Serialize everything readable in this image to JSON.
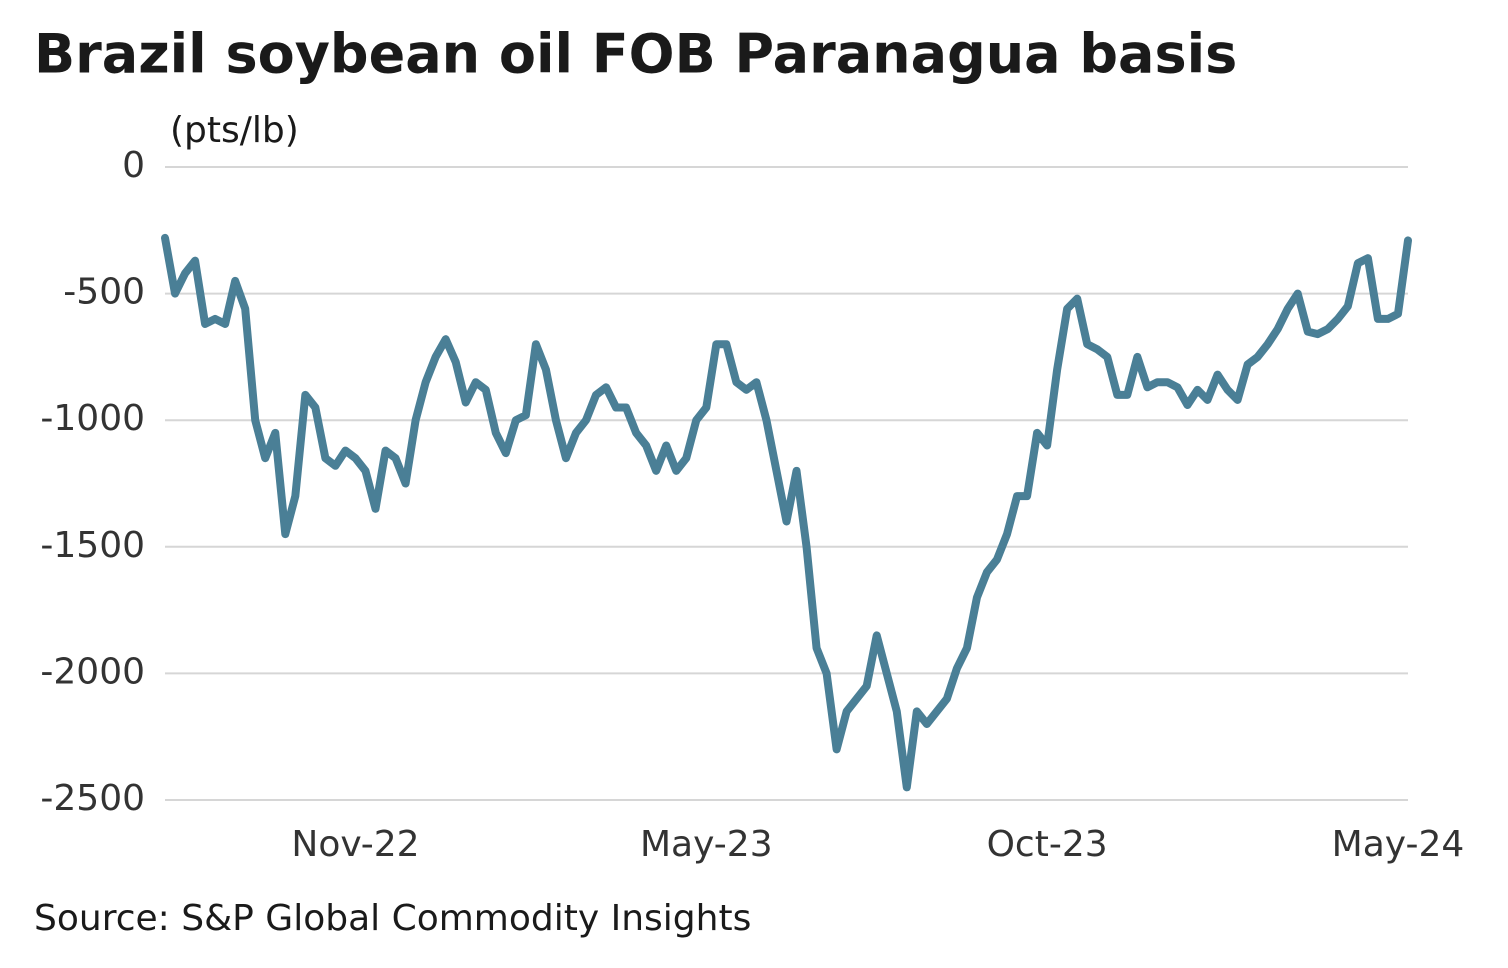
{
  "chart_data": {
    "type": "line",
    "title": "Brazil soybean oil FOB Paranagua basis",
    "y_label": "(pts/lb)",
    "source": "Source: S&P Global Commodity Insights",
    "categories": [
      null,
      null,
      null,
      null,
      null,
      null,
      null,
      null,
      null,
      null,
      null,
      null,
      null,
      null,
      null,
      null,
      null,
      null,
      null,
      "Nov-22",
      null,
      null,
      null,
      null,
      null,
      null,
      null,
      null,
      null,
      null,
      null,
      null,
      null,
      null,
      null,
      null,
      null,
      null,
      null,
      null,
      null,
      null,
      null,
      null,
      null,
      null,
      null,
      null,
      null,
      null,
      null,
      null,
      null,
      null,
      "May-23",
      null,
      null,
      null,
      null,
      null,
      null,
      null,
      null,
      null,
      null,
      null,
      null,
      null,
      null,
      null,
      null,
      null,
      null,
      null,
      null,
      null,
      null,
      null,
      null,
      null,
      null,
      null,
      null,
      null,
      null,
      null,
      null,
      null,
      "Oct-23",
      null,
      null,
      null,
      null,
      null,
      null,
      null,
      null,
      null,
      null,
      null,
      null,
      null,
      null,
      null,
      null,
      null,
      null,
      null,
      null,
      null,
      null,
      null,
      null,
      null,
      null,
      null,
      null,
      null,
      null,
      null,
      null,
      null,
      null,
      "May-24",
      null
    ],
    "series": [
      {
        "name": "Basis",
        "color": "#4a7f96",
        "values": [
          -280,
          -500,
          -420,
          -370,
          -620,
          -600,
          -620,
          -450,
          -560,
          -1000,
          -1150,
          -1050,
          -1450,
          -1300,
          -900,
          -950,
          -1150,
          -1180,
          -1120,
          -1150,
          -1200,
          -1350,
          -1120,
          -1150,
          -1250,
          -1000,
          -850,
          -750,
          -680,
          -770,
          -930,
          -850,
          -880,
          -1050,
          -1130,
          -1000,
          -980,
          -700,
          -800,
          -1000,
          -1150,
          -1050,
          -1000,
          -900,
          -870,
          -950,
          -950,
          -1050,
          -1100,
          -1200,
          -1100,
          -1200,
          -1150,
          -1000,
          -950,
          -700,
          -700,
          -850,
          -880,
          -850,
          -1000,
          -1200,
          -1400,
          -1200,
          -1500,
          -1900,
          -2000,
          -2300,
          -2150,
          -2100,
          -2050,
          -1850,
          -2000,
          -2150,
          -2450,
          -2150,
          -2200,
          -2150,
          -2100,
          -1980,
          -1900,
          -1700,
          -1600,
          -1550,
          -1450,
          -1300,
          -1300,
          -1050,
          -1100,
          -800,
          -560,
          -520,
          -700,
          -720,
          -750,
          -900,
          -900,
          -750,
          -870,
          -850,
          -850,
          -870,
          -940,
          -880,
          -920,
          -820,
          -880,
          -920,
          -780,
          -750,
          -700,
          -640,
          -560,
          -500,
          -650,
          -660,
          -640,
          -600,
          -550,
          -380,
          -360,
          -600,
          -600,
          -580,
          -290
        ]
      }
    ],
    "ylim": [
      -2500,
      0
    ],
    "yticks": [
      0,
      -500,
      -1000,
      -1500,
      -2000,
      -2500
    ],
    "grid": true
  }
}
